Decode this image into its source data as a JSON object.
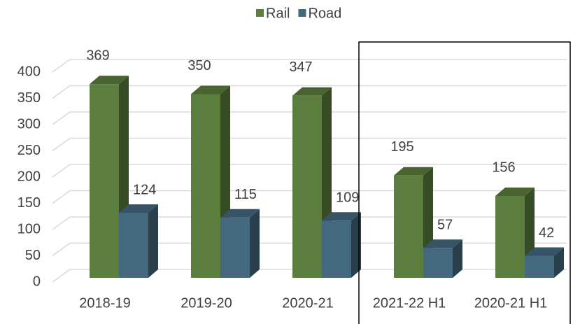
{
  "chart_data": {
    "type": "bar3d",
    "categories": [
      "2018-19",
      "2019-20",
      "2020-21",
      "2021-22 H1",
      "2020-21 H1"
    ],
    "series": [
      {
        "name": "Rail",
        "color": "#5b7d3d",
        "values": [
          369,
          350,
          347,
          195,
          156
        ]
      },
      {
        "name": "Road",
        "color": "#44697f",
        "values": [
          124,
          115,
          109,
          57,
          42
        ]
      }
    ],
    "ylim": [
      0,
      400
    ],
    "yticks": [
      0,
      50,
      100,
      150,
      200,
      250,
      300,
      350,
      400
    ],
    "grid": true,
    "legend": "top"
  }
}
